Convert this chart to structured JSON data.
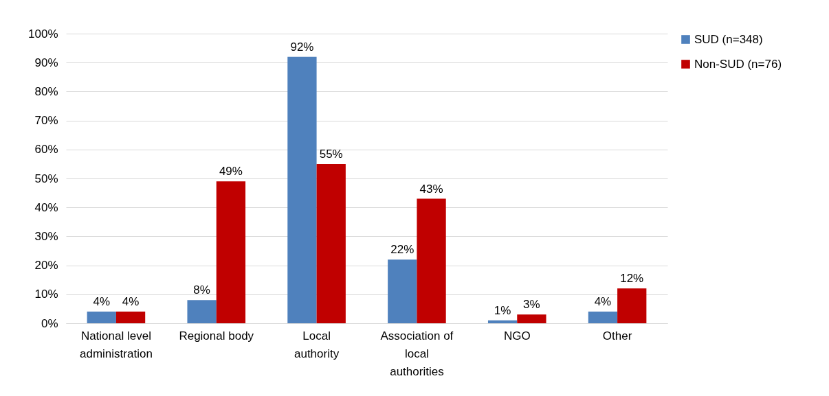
{
  "chart_data": {
    "type": "bar",
    "categories": [
      "National level administration",
      "Regional body",
      "Local authority",
      "Association of local authorities",
      "NGO",
      "Other"
    ],
    "series": [
      {
        "name": "SUD (n=348)",
        "color": "#4f81bd",
        "values": [
          4,
          8,
          92,
          22,
          1,
          4
        ],
        "value_labels": [
          "4%",
          "8%",
          "92%",
          "22%",
          "1%",
          "4%"
        ]
      },
      {
        "name": "Non-SUD (n=76)",
        "color": "#c00000",
        "values": [
          4,
          49,
          55,
          43,
          3,
          12
        ],
        "value_labels": [
          "4%",
          "49%",
          "55%",
          "43%",
          "3%",
          "12%"
        ]
      }
    ],
    "ylim": [
      0,
      100
    ],
    "yticks": [
      {
        "value": 0,
        "label": "0%"
      },
      {
        "value": 10,
        "label": "10%"
      },
      {
        "value": 20,
        "label": "20%"
      },
      {
        "value": 30,
        "label": "30%"
      },
      {
        "value": 40,
        "label": "40%"
      },
      {
        "value": 50,
        "label": "50%"
      },
      {
        "value": 60,
        "label": "60%"
      },
      {
        "value": 70,
        "label": "70%"
      },
      {
        "value": 80,
        "label": "80%"
      },
      {
        "value": 90,
        "label": "90%"
      },
      {
        "value": 100,
        "label": "100%"
      }
    ],
    "grid": "y",
    "legend": "right"
  }
}
